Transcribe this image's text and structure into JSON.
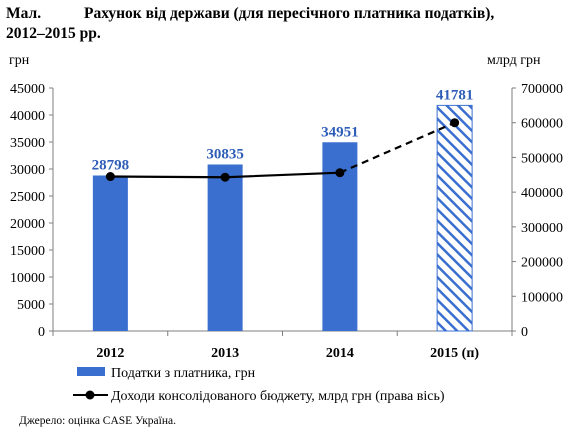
{
  "figure": {
    "number_label": "Мал.",
    "title_line1": "Рахунок від держави (для пересічного платника податків),",
    "title_line2": "2012–2015 рр.",
    "left_unit": "грн",
    "right_unit": "млрд грн",
    "source": "Джерело: оцінка CASE Україна."
  },
  "colors": {
    "bar": "#3a6fd0",
    "bar_label": "#2e5db8",
    "line": "#000000",
    "axis": "#7f7f7f",
    "grid": "#d9d9d9"
  },
  "chart_data": {
    "type": "bar",
    "categories": [
      "2012",
      "2013",
      "2014",
      "2015 (п)"
    ],
    "series": [
      {
        "name": "Податки з платника, грн",
        "type": "bar",
        "axis": "left",
        "values": [
          28798,
          30835,
          34951,
          41781
        ],
        "data_labels": [
          "28798",
          "30835",
          "34951",
          "41781"
        ],
        "projected": [
          false,
          false,
          false,
          true
        ]
      },
      {
        "name": "Доходи консолідованого бюджету, млрд грн (права вісь)",
        "type": "line",
        "axis": "right",
        "values": [
          445000,
          443000,
          456000,
          600000
        ],
        "projected_segment_from_index": 2
      }
    ],
    "ylim_left": [
      0,
      45000
    ],
    "yticks_left": [
      0,
      5000,
      10000,
      15000,
      20000,
      25000,
      30000,
      35000,
      40000,
      45000
    ],
    "ylim_right": [
      0,
      700000
    ],
    "yticks_right": [
      0,
      100000,
      200000,
      300000,
      400000,
      500000,
      600000,
      700000
    ],
    "ylabel_left": "грн",
    "ylabel_right": "млрд грн",
    "grid": false,
    "legend_position": "bottom"
  }
}
